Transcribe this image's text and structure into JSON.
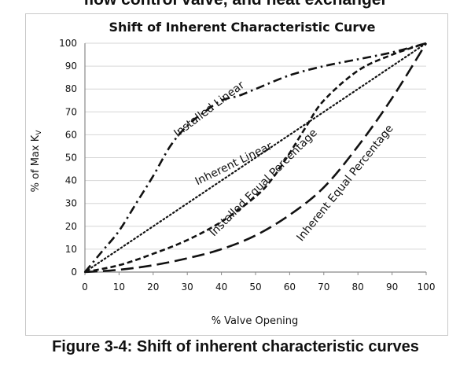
{
  "figure": {
    "top_caption": "flow control valve, and heat exchanger",
    "bottom_caption": "Figure 3-4: Shift of inherent characteristic curves"
  },
  "chart_data": {
    "type": "line",
    "title": "Shift of Inherent Characteristic Curve",
    "xlabel": "% Valve Opening",
    "ylabel_main": "% of Max K",
    "ylabel_sub": "V",
    "xlim": [
      0,
      100
    ],
    "ylim": [
      0,
      100
    ],
    "xticks": [
      "0",
      "10",
      "20",
      "30",
      "40",
      "50",
      "60",
      "70",
      "80",
      "90",
      "100"
    ],
    "yticks": [
      "0",
      "10",
      "20",
      "30",
      "40",
      "50",
      "60",
      "70",
      "80",
      "90",
      "100"
    ],
    "grid": true,
    "legend": "none",
    "colors": {
      "line": "#111111",
      "grid": "#d6d6d6",
      "axis": "#888888"
    },
    "series": [
      {
        "name": "Installed Linear",
        "style": "dash-dot",
        "x": [
          0,
          5,
          10,
          15,
          20,
          25,
          30,
          35,
          40,
          45,
          50,
          60,
          70,
          80,
          90,
          100
        ],
        "y": [
          0,
          9,
          18,
          30,
          42,
          55,
          64,
          70,
          75,
          77,
          80,
          86,
          90,
          93,
          96,
          100
        ]
      },
      {
        "name": "Inherent Linear",
        "style": "dotted",
        "x": [
          0,
          10,
          20,
          30,
          40,
          50,
          60,
          70,
          80,
          90,
          100
        ],
        "y": [
          0,
          10,
          20,
          30,
          40,
          50,
          60,
          70,
          80,
          90,
          100
        ]
      },
      {
        "name": "Installed Equal Percentage",
        "style": "short-dash",
        "x": [
          0,
          10,
          20,
          30,
          40,
          50,
          55,
          60,
          65,
          70,
          80,
          90,
          100
        ],
        "y": [
          0,
          3,
          8,
          14,
          22,
          33,
          41,
          52,
          64,
          75,
          88,
          95,
          100
        ]
      },
      {
        "name": "Inherent Equal Percentage",
        "style": "long-dash",
        "x": [
          0,
          10,
          20,
          30,
          40,
          50,
          60,
          70,
          80,
          90,
          100
        ],
        "y": [
          0,
          1,
          3,
          6,
          10,
          16,
          25,
          37,
          55,
          76,
          100
        ]
      }
    ]
  }
}
